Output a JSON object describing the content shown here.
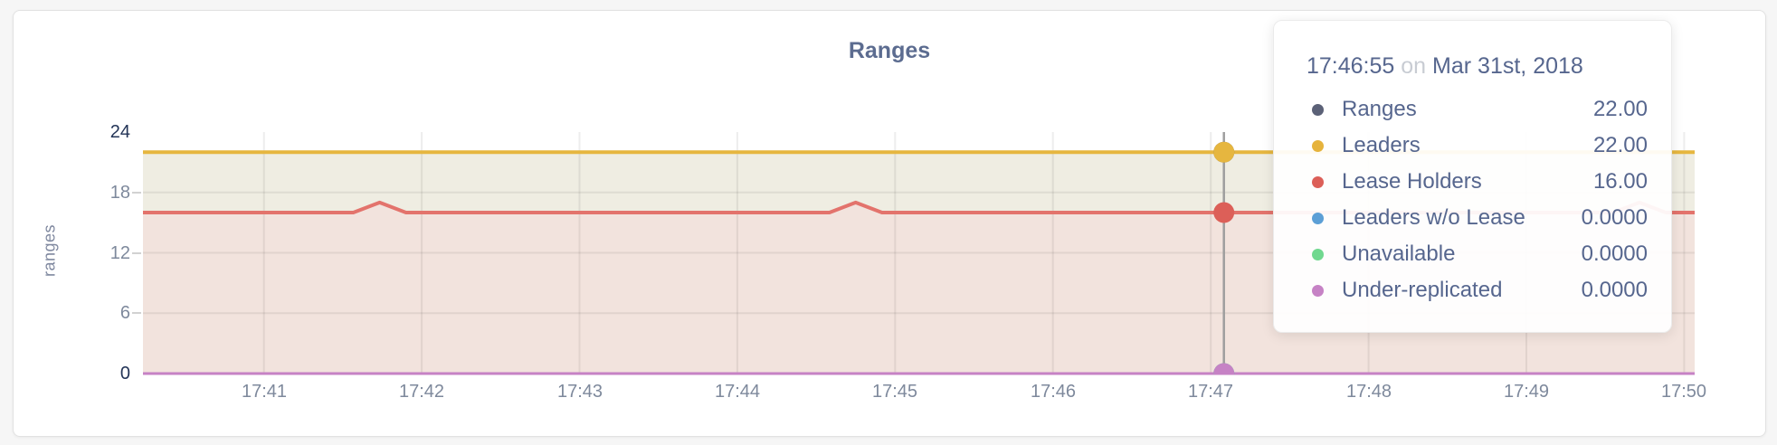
{
  "card": {
    "title": "Ranges"
  },
  "chart_data": {
    "type": "area",
    "title": "Ranges",
    "ylabel": "ranges",
    "ylim": [
      0,
      24
    ],
    "y_ticks": [
      0,
      6,
      12,
      18,
      24
    ],
    "x_domain": [
      "17:40:14",
      "17:50:04"
    ],
    "x_ticks": [
      "17:41",
      "17:42",
      "17:43",
      "17:44",
      "17:45",
      "17:46",
      "17:47",
      "17:48",
      "17:49",
      "17:50"
    ],
    "grid_color": "rgba(30,30,30,0.08)",
    "series": [
      {
        "name": "Ranges",
        "color": "#5b6177",
        "line_width": 3,
        "points": [
          [
            "17:40:14",
            22
          ],
          [
            "17:50:04",
            22
          ]
        ]
      },
      {
        "name": "Leaders",
        "color": "#e6b63f",
        "line_width": 4,
        "fill": "#efede2",
        "points": [
          [
            "17:40:14",
            22
          ],
          [
            "17:50:04",
            22
          ]
        ]
      },
      {
        "name": "Lease Holders",
        "color": "#dc5f58",
        "line_color": "#e3736c",
        "line_width": 4,
        "fill": "#f2e3dd",
        "points": [
          [
            "17:40:14",
            16
          ],
          [
            "17:41:34",
            16
          ],
          [
            "17:41:44",
            17
          ],
          [
            "17:41:54",
            16
          ],
          [
            "17:44:35",
            16
          ],
          [
            "17:44:45",
            17
          ],
          [
            "17:44:55",
            16
          ],
          [
            "17:49:33",
            16
          ],
          [
            "17:49:43",
            17
          ],
          [
            "17:49:53",
            16
          ],
          [
            "17:50:04",
            16
          ]
        ]
      },
      {
        "name": "Leaders w/o Lease",
        "color": "#5c9fd6",
        "line_width": 2,
        "points": [
          [
            "17:40:14",
            0
          ],
          [
            "17:50:04",
            0
          ]
        ]
      },
      {
        "name": "Unavailable",
        "color": "#70d88f",
        "line_width": 2,
        "points": [
          [
            "17:40:14",
            0
          ],
          [
            "17:50:04",
            0
          ]
        ]
      },
      {
        "name": "Under-replicated",
        "color": "#c682c5",
        "line_width": 3,
        "points": [
          [
            "17:40:14",
            0
          ],
          [
            "17:50:04",
            0
          ]
        ]
      }
    ],
    "hover": {
      "time": "17:47:05",
      "line_color": "#9e9e9e",
      "dot_radius": 11.5
    }
  },
  "tooltip": {
    "time": "17:46:55",
    "on_word": "on",
    "date": "Mar 31st, 2018",
    "rows": [
      {
        "label": "Ranges",
        "value": "22.00",
        "color": "#5b6177"
      },
      {
        "label": "Leaders",
        "value": "22.00",
        "color": "#e6b33c"
      },
      {
        "label": "Lease Holders",
        "value": "16.00",
        "color": "#dc5f58"
      },
      {
        "label": "Leaders w/o Lease",
        "value": "0.0000",
        "color": "#5c9fd6"
      },
      {
        "label": "Unavailable",
        "value": "0.0000",
        "color": "#70d88f"
      },
      {
        "label": "Under-replicated",
        "value": "0.0000",
        "color": "#c682c5"
      }
    ]
  }
}
